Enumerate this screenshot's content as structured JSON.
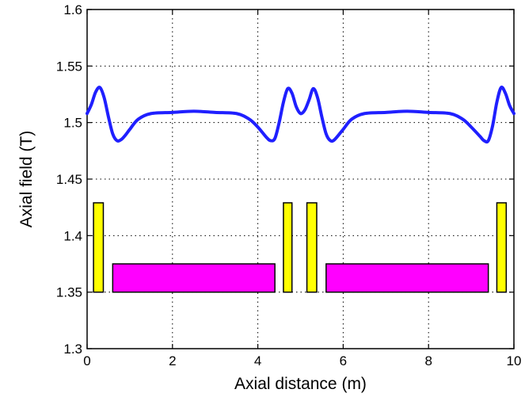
{
  "colors": {
    "field_line": "#1f1fff",
    "coil": "#ffff00",
    "magnet": "#ff00ff",
    "outline": "#000000",
    "grid": "#000000",
    "title_text": "#1f1fff"
  },
  "chart_data": {
    "type": "line",
    "title": "",
    "xlabel": "Axial distance (m)",
    "ylabel": "Axial field (T)",
    "xlim": [
      0,
      10
    ],
    "ylim": [
      1.3,
      1.6
    ],
    "grid": true,
    "legend": "none",
    "xticks": [
      0,
      2,
      4,
      6,
      8,
      10
    ],
    "xtick_labels": [
      "0",
      "2",
      "4",
      "6",
      "8",
      "10"
    ],
    "yticks": [
      1.3,
      1.35,
      1.4,
      1.45,
      1.5,
      1.55,
      1.6
    ],
    "ytick_labels": [
      "1.3",
      "1.35",
      "1.4",
      "1.45",
      "1.5",
      "1.55",
      "1.6"
    ],
    "series": [
      {
        "x": [
          0,
          0.1,
          0.2,
          0.3,
          0.4,
          0.5,
          0.6,
          0.7,
          0.8,
          0.9,
          1.0,
          1.2,
          1.5,
          2.0,
          2.5,
          3.0,
          3.5,
          3.8,
          4.0,
          4.2,
          4.3,
          4.4,
          4.5,
          4.6,
          4.7,
          4.8,
          4.9,
          5.0,
          5.1,
          5.2,
          5.3,
          5.4,
          5.5,
          5.6,
          5.7,
          5.8,
          6.0,
          6.2,
          6.5,
          7.0,
          7.5,
          8.0,
          8.5,
          8.8,
          9.0,
          9.2,
          9.3,
          9.4,
          9.5,
          9.6,
          9.7,
          9.8,
          9.9,
          10.0
        ],
        "y": [
          1.508,
          1.516,
          1.527,
          1.531,
          1.522,
          1.505,
          1.49,
          1.484,
          1.485,
          1.489,
          1.494,
          1.503,
          1.508,
          1.509,
          1.51,
          1.509,
          1.508,
          1.503,
          1.496,
          1.487,
          1.484,
          1.486,
          1.5,
          1.518,
          1.53,
          1.526,
          1.514,
          1.508,
          1.511,
          1.52,
          1.53,
          1.522,
          1.505,
          1.49,
          1.484,
          1.485,
          1.494,
          1.503,
          1.508,
          1.509,
          1.51,
          1.509,
          1.508,
          1.503,
          1.496,
          1.488,
          1.484,
          1.484,
          1.497,
          1.518,
          1.531,
          1.526,
          1.515,
          1.508
        ]
      }
    ],
    "coils": [
      {
        "x0": 0.15,
        "x1": 0.38,
        "y0": 1.35,
        "y1": 1.429
      },
      {
        "x0": 4.6,
        "x1": 4.8,
        "y0": 1.35,
        "y1": 1.429
      },
      {
        "x0": 5.15,
        "x1": 5.38,
        "y0": 1.35,
        "y1": 1.429
      },
      {
        "x0": 9.6,
        "x1": 9.82,
        "y0": 1.35,
        "y1": 1.429
      }
    ],
    "magnets": [
      {
        "x0": 0.6,
        "x1": 4.4,
        "y0": 1.35,
        "y1": 1.375
      },
      {
        "x0": 5.6,
        "x1": 9.4,
        "y0": 1.35,
        "y1": 1.375
      }
    ]
  }
}
